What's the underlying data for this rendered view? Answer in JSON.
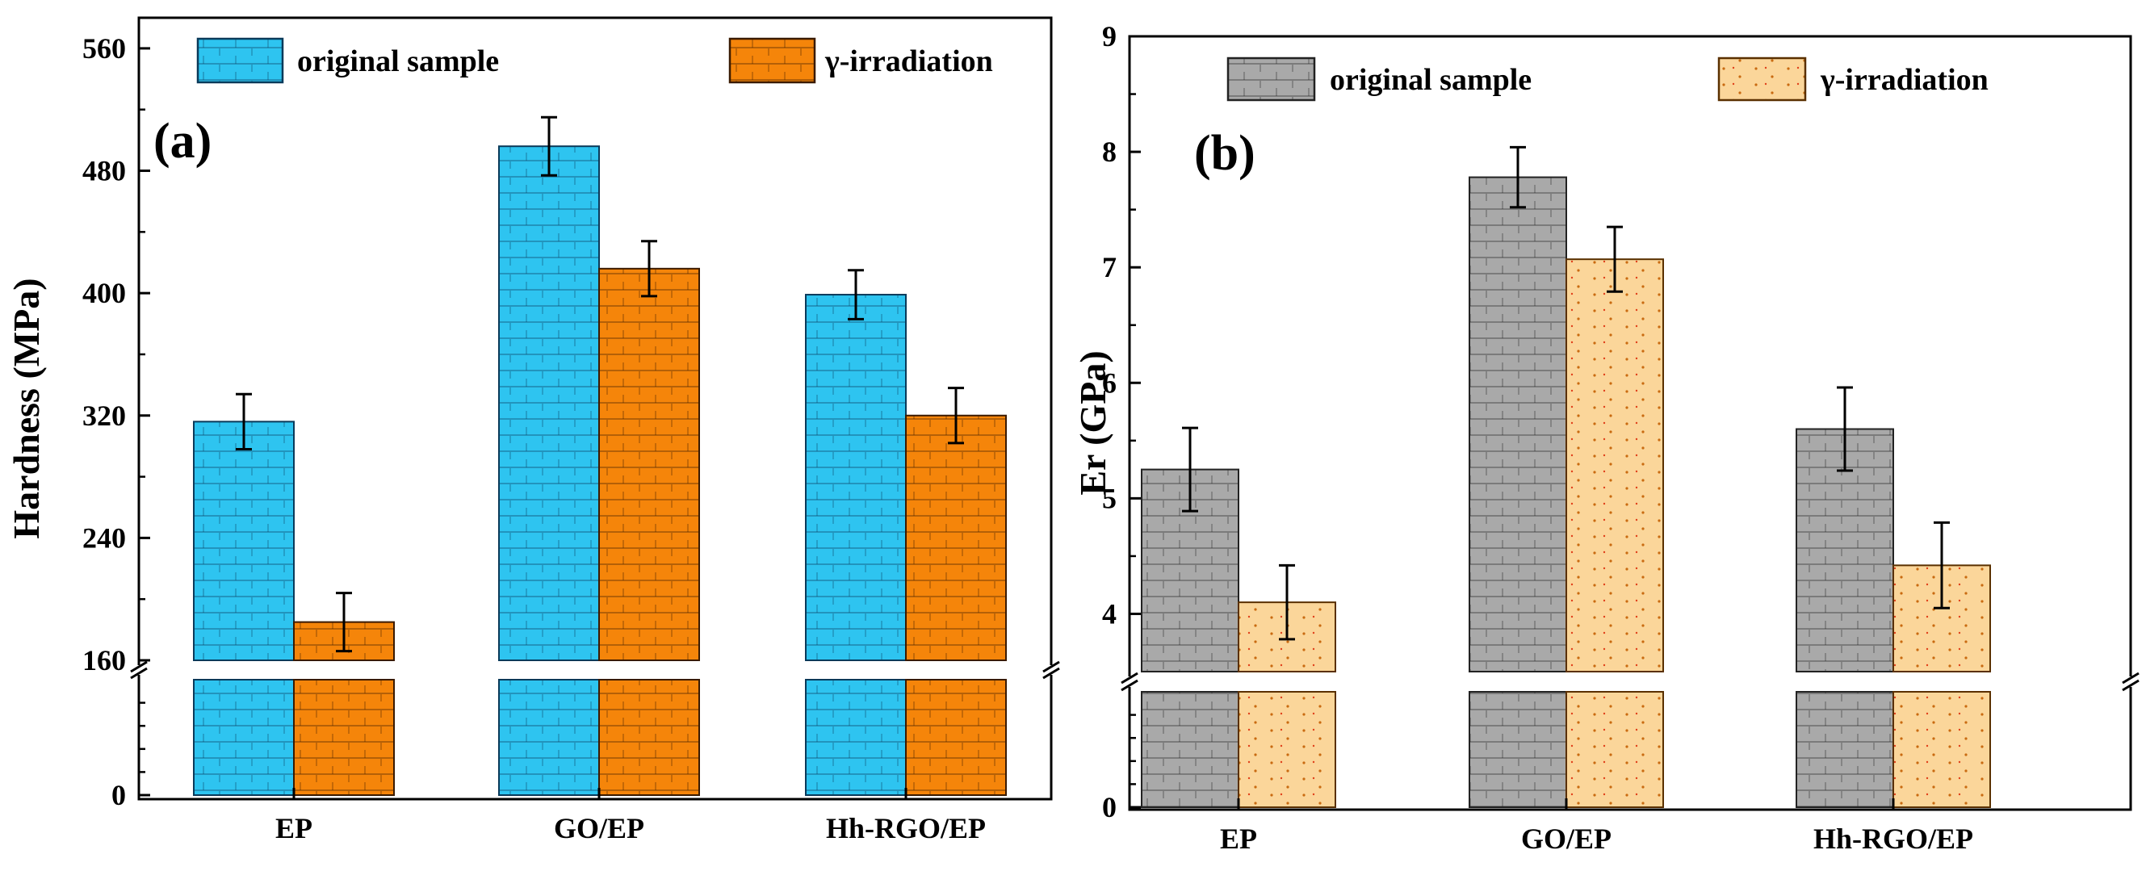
{
  "chart_data": [
    {
      "panel": "(a)",
      "type": "bar",
      "ylabel": "Hardness (MPa)",
      "xlabel": "",
      "categories": [
        "EP",
        "GO/EP",
        "Hh-RGO/EP"
      ],
      "series": [
        {
          "name": "original sample",
          "values": [
            316,
            496,
            399
          ],
          "errors": [
            18,
            19,
            16
          ],
          "color": "#2ec4f0",
          "edge": "#0a3a5a"
        },
        {
          "name": "γ-irradiation",
          "values": [
            185,
            416,
            320
          ],
          "errors": [
            19,
            18,
            18
          ],
          "color": "#f5850a",
          "edge": "#3a1a00"
        }
      ],
      "axis_break": {
        "lower": [
          0,
          0
        ],
        "upper_start": 160
      },
      "yticks": [
        0,
        160,
        240,
        320,
        400,
        480,
        560
      ],
      "ylim": [
        160,
        580
      ],
      "legend": "top"
    },
    {
      "panel": "(b)",
      "type": "bar",
      "ylabel": "Er (GPa)",
      "xlabel": "",
      "categories": [
        "EP",
        "GO/EP",
        "Hh-RGO/EP"
      ],
      "series": [
        {
          "name": "original sample",
          "values": [
            5.25,
            7.78,
            5.6
          ],
          "errors": [
            0.36,
            0.26,
            0.36
          ],
          "color": "#a9a9a9",
          "edge": "#222222"
        },
        {
          "name": "γ-irradiation",
          "values": [
            4.1,
            7.07,
            4.42
          ],
          "errors": [
            0.32,
            0.28,
            0.37
          ],
          "color": "#fbd69a",
          "edge": "#5a3000"
        }
      ],
      "axis_break": {
        "lower": [
          0,
          0
        ],
        "upper_start": 3.5
      },
      "yticks": [
        0,
        4,
        5,
        6,
        7,
        8,
        9
      ],
      "ylim": [
        3.5,
        9
      ],
      "legend": "top"
    }
  ]
}
